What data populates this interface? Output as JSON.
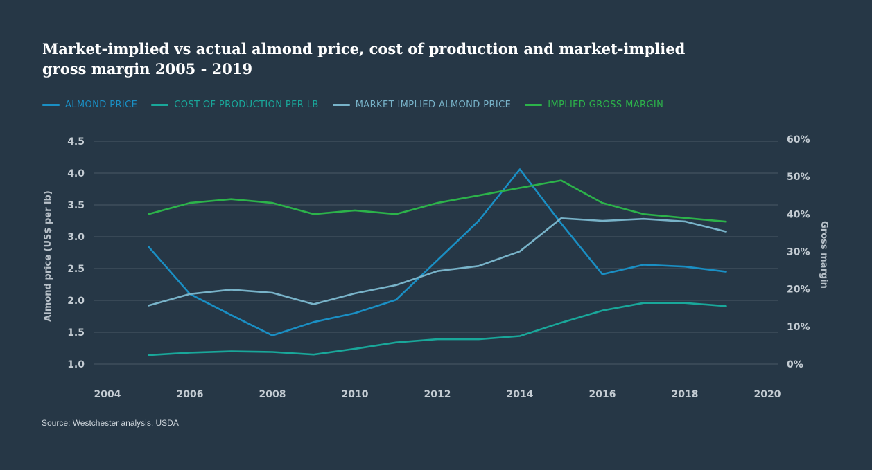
{
  "title": "Market-implied vs actual almond price, cost of production and market-implied gross margin 2005 - 2019",
  "source": "Source: Westchester analysis, USDA",
  "chart_data": {
    "type": "line",
    "legend_placement": "top-left",
    "grid": true,
    "xlim": [
      2004,
      2020
    ],
    "x_ticks": [
      "2004",
      "2006",
      "2008",
      "2010",
      "2012",
      "2014",
      "2016",
      "2018",
      "2020"
    ],
    "y_left": {
      "label": "Almond price (US$ per lb)",
      "lim": [
        1.0,
        4.5
      ],
      "ticks": [
        "1.0",
        "1.5",
        "2.0",
        "2.5",
        "3.0",
        "3.5",
        "4.0",
        "4.5"
      ]
    },
    "y_right": {
      "label": "Gross margin",
      "lim": [
        0,
        60
      ],
      "ticks": [
        "0%",
        "10%",
        "20%",
        "30%",
        "40%",
        "50%",
        "60%"
      ]
    },
    "series": [
      {
        "name": "ALMOND PRICE",
        "axis": "left",
        "color": "#1a8fc4",
        "x": [
          2005,
          2006,
          2007,
          2008,
          2009,
          2010,
          2011,
          2012,
          2013,
          2014,
          2015,
          2016,
          2017,
          2018,
          2019
        ],
        "values": [
          2.84,
          2.1,
          1.77,
          1.45,
          1.66,
          1.8,
          2.01,
          2.63,
          3.25,
          4.06,
          3.21,
          2.41,
          2.56,
          2.53,
          2.45
        ]
      },
      {
        "name": "COST OF PRODUCTION PER LB",
        "axis": "left",
        "color": "#19a79a",
        "x": [
          2005,
          2006,
          2007,
          2008,
          2009,
          2010,
          2011,
          2012,
          2013,
          2014,
          2015,
          2016,
          2017,
          2018,
          2019
        ],
        "values": [
          1.14,
          1.18,
          1.2,
          1.19,
          1.15,
          1.24,
          1.34,
          1.39,
          1.39,
          1.44,
          1.65,
          1.84,
          1.96,
          1.96,
          1.91
        ]
      },
      {
        "name": "MARKET IMPLIED ALMOND PRICE",
        "axis": "left",
        "color": "#78b3c9",
        "x": [
          2005,
          2006,
          2007,
          2008,
          2009,
          2010,
          2011,
          2012,
          2013,
          2014,
          2015,
          2016,
          2017,
          2018,
          2019
        ],
        "values": [
          1.92,
          2.1,
          2.17,
          2.12,
          1.94,
          2.11,
          2.24,
          2.46,
          2.54,
          2.77,
          3.29,
          3.25,
          3.28,
          3.24,
          3.08
        ]
      },
      {
        "name": "IMPLIED GROSS MARGIN",
        "axis": "right",
        "color": "#2cb34a",
        "x": [
          2005,
          2006,
          2007,
          2008,
          2009,
          2010,
          2011,
          2012,
          2013,
          2014,
          2015,
          2016,
          2017,
          2018,
          2019
        ],
        "values": [
          40,
          43,
          44,
          43,
          40,
          41,
          40,
          43,
          45,
          47,
          49,
          43,
          40,
          39,
          38
        ]
      }
    ]
  }
}
